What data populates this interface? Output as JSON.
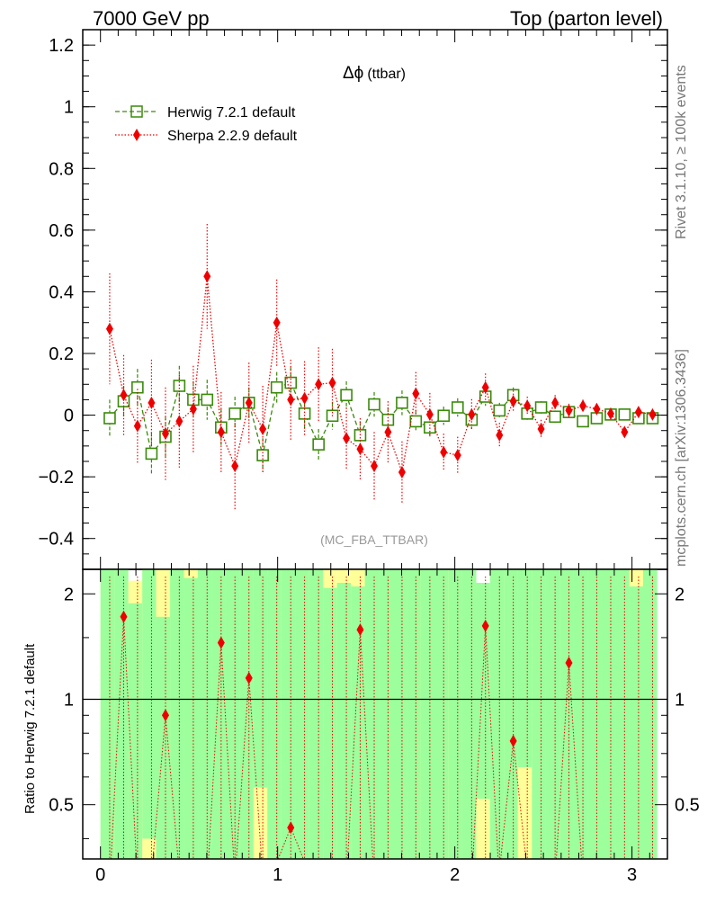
{
  "header": {
    "left": "7000 GeV pp",
    "right": "Top (parton level)"
  },
  "side_labels": {
    "rivet": "Rivet 3.1.10, ≥ 100k events",
    "mcplots": "mcplots.cern.ch [arXiv:1306.3436]"
  },
  "chart_data": [
    {
      "type": "line",
      "title": "Δϕ (ttbar)",
      "title_symbol": "Δϕ",
      "title_suffix": "(ttbar)",
      "watermark": "(MC_FBA_TTBAR)",
      "xlim": [
        -0.1,
        3.2
      ],
      "ylim": [
        -0.5,
        1.25
      ],
      "yticks": [
        -0.4,
        -0.2,
        0,
        0.2,
        0.4,
        0.6,
        0.8,
        1,
        1.2
      ],
      "ytick_labels": [
        "−0.4",
        "−0.2",
        "0",
        "0.2",
        "0.4",
        "0.6",
        "0.8",
        "1",
        "1.2"
      ],
      "grid": false,
      "legend_position": "top-left",
      "series": [
        {
          "name": "Herwig 7.2.1 default",
          "color": "#3a8a0a",
          "marker": "open-square",
          "line": "dashed",
          "x": [
            0.052,
            0.131,
            0.209,
            0.288,
            0.367,
            0.445,
            0.524,
            0.602,
            0.681,
            0.759,
            0.838,
            0.916,
            0.995,
            1.074,
            1.152,
            1.231,
            1.309,
            1.388,
            1.466,
            1.545,
            1.623,
            1.702,
            1.78,
            1.859,
            1.937,
            2.016,
            2.095,
            2.173,
            2.252,
            2.33,
            2.409,
            2.487,
            2.566,
            2.644,
            2.723,
            2.801,
            2.88,
            2.958,
            3.037,
            3.116
          ],
          "y": [
            -0.01,
            0.045,
            0.09,
            -0.125,
            -0.07,
            0.095,
            0.05,
            0.05,
            -0.04,
            0.005,
            0.04,
            -0.13,
            0.09,
            0.105,
            0.005,
            -0.095,
            -0.002,
            0.065,
            -0.065,
            0.035,
            -0.015,
            0.04,
            -0.02,
            -0.04,
            -0.002,
            0.025,
            -0.015,
            0.06,
            0.015,
            0.065,
            0.005,
            0.025,
            -0.005,
            0.01,
            -0.02,
            -0.01,
            0.002,
            0.002,
            -0.01,
            -0.01
          ],
          "err": [
            0.06,
            0.05,
            0.06,
            0.07,
            0.065,
            0.065,
            0.06,
            0.065,
            0.06,
            0.055,
            0.05,
            0.055,
            0.05,
            0.05,
            0.05,
            0.05,
            0.045,
            0.045,
            0.045,
            0.04,
            0.04,
            0.04,
            0.035,
            0.035,
            0.03,
            0.03,
            0.03,
            0.03,
            0.025,
            0.025,
            0.02,
            0.02,
            0.02,
            0.018,
            0.016,
            0.015,
            0.014,
            0.013,
            0.012,
            0.012
          ]
        },
        {
          "name": "Sherpa 2.2.9 default",
          "color": "#ee0000",
          "marker": "filled-diamond",
          "line": "dotted",
          "x": [
            0.052,
            0.131,
            0.209,
            0.288,
            0.367,
            0.445,
            0.524,
            0.602,
            0.681,
            0.759,
            0.838,
            0.916,
            0.995,
            1.074,
            1.152,
            1.231,
            1.309,
            1.388,
            1.466,
            1.545,
            1.623,
            1.702,
            1.78,
            1.859,
            1.937,
            2.016,
            2.095,
            2.173,
            2.252,
            2.33,
            2.409,
            2.487,
            2.566,
            2.644,
            2.723,
            2.801,
            2.88,
            2.958,
            3.037,
            3.116
          ],
          "y": [
            0.28,
            0.065,
            -0.035,
            0.04,
            -0.06,
            -0.02,
            0.02,
            0.45,
            -0.055,
            -0.165,
            0.04,
            -0.045,
            0.3,
            0.05,
            0.055,
            0.1,
            0.105,
            -0.075,
            -0.11,
            -0.165,
            -0.055,
            -0.185,
            0.07,
            0.002,
            -0.12,
            -0.13,
            0.002,
            0.09,
            -0.065,
            0.045,
            0.03,
            -0.045,
            0.04,
            0.015,
            0.03,
            0.02,
            0.005,
            -0.055,
            0.01,
            0.002
          ],
          "err": [
            0.18,
            0.13,
            0.12,
            0.14,
            0.15,
            0.15,
            0.14,
            0.17,
            0.13,
            0.14,
            0.13,
            0.14,
            0.14,
            0.13,
            0.12,
            0.12,
            0.11,
            0.1,
            0.1,
            0.11,
            0.1,
            0.1,
            0.07,
            0.07,
            0.06,
            0.06,
            0.05,
            0.045,
            0.04,
            0.035,
            0.03,
            0.03,
            0.025,
            0.022,
            0.02,
            0.018,
            0.016,
            0.015,
            0.013,
            0.012
          ]
        }
      ]
    },
    {
      "type": "line",
      "ylabel": "Ratio to Herwig 7.2.1 default",
      "xlim": [
        -0.1,
        3.2
      ],
      "ylim": [
        0.35,
        2.35
      ],
      "yticks": [
        0.5,
        1,
        2
      ],
      "ytick_labels": [
        "0.5",
        "1",
        "2"
      ],
      "xticks": [
        0,
        1,
        2,
        3
      ],
      "xtick_labels": [
        "0",
        "1",
        "2",
        "3"
      ],
      "reference_line": 1,
      "bands": {
        "x_edges": [
          0.0,
          0.0785,
          0.157,
          0.236,
          0.314,
          0.393,
          0.471,
          0.55,
          0.628,
          0.707,
          0.785,
          0.864,
          0.942,
          1.021,
          1.1,
          1.178,
          1.257,
          1.335,
          1.414,
          1.492,
          1.571,
          1.649,
          1.728,
          1.806,
          1.885,
          1.963,
          2.042,
          2.121,
          2.199,
          2.278,
          2.356,
          2.435,
          2.513,
          2.592,
          2.67,
          2.749,
          2.827,
          2.906,
          2.985,
          3.063,
          3.142
        ],
        "inner_color": "#9cff9c",
        "outer_color": "#ffff99",
        "inner_low": [
          0.35,
          0.35,
          0.35,
          0.4,
          0.35,
          0.35,
          0.35,
          0.35,
          0.35,
          0.35,
          0.35,
          0.56,
          0.35,
          0.35,
          0.35,
          0.35,
          0.35,
          0.35,
          0.35,
          0.35,
          0.35,
          0.35,
          0.35,
          0.35,
          0.35,
          0.35,
          0.35,
          0.52,
          0.35,
          0.35,
          0.64,
          0.35,
          0.35,
          0.35,
          0.35,
          0.35,
          0.35,
          0.35,
          0.35,
          0.35
        ],
        "inner_high": [
          2.35,
          2.35,
          1.88,
          2.35,
          1.72,
          2.35,
          2.22,
          2.35,
          2.35,
          2.35,
          2.35,
          2.35,
          2.35,
          2.35,
          2.35,
          2.35,
          2.08,
          2.15,
          2.1,
          2.35,
          2.35,
          2.35,
          2.35,
          2.35,
          2.35,
          2.35,
          2.35,
          2.35,
          2.35,
          2.35,
          2.35,
          2.35,
          2.35,
          2.35,
          2.35,
          2.35,
          2.35,
          2.35,
          2.1,
          2.35
        ],
        "outer_low": [
          0.35,
          0.35,
          0.35,
          0.35,
          0.35,
          0.35,
          0.35,
          0.35,
          0.35,
          0.35,
          0.35,
          0.35,
          0.35,
          0.35,
          0.35,
          0.35,
          0.35,
          0.35,
          0.35,
          0.35,
          0.35,
          0.35,
          0.35,
          0.35,
          0.35,
          0.35,
          0.35,
          0.35,
          0.35,
          0.35,
          0.35,
          0.35,
          0.35,
          0.35,
          0.35,
          0.35,
          0.35,
          0.35,
          0.35,
          0.35
        ],
        "outer_high": [
          2.35,
          2.35,
          2.35,
          2.35,
          2.35,
          2.35,
          2.35,
          2.35,
          2.35,
          2.35,
          2.35,
          2.35,
          2.35,
          2.35,
          2.35,
          2.35,
          2.35,
          2.35,
          2.35,
          2.35,
          2.35,
          2.35,
          2.35,
          2.35,
          2.35,
          2.35,
          2.35,
          2.35,
          2.35,
          2.35,
          2.35,
          2.35,
          2.35,
          2.35,
          2.35,
          2.35,
          2.35,
          2.35,
          2.35,
          2.35
        ],
        "outer_top_gap": [
          2.35,
          2.35,
          2.18,
          2.35,
          2.35,
          2.35,
          2.35,
          2.35,
          2.35,
          2.35,
          2.35,
          2.35,
          2.35,
          2.35,
          2.35,
          2.35,
          2.35,
          2.35,
          2.35,
          2.35,
          2.35,
          2.35,
          2.35,
          2.35,
          2.35,
          2.35,
          2.35,
          2.15,
          2.35,
          2.35,
          2.35,
          2.35,
          2.35,
          2.35,
          2.35,
          2.35,
          2.35,
          2.35,
          2.35,
          2.35
        ]
      },
      "series": [
        {
          "name": "Sherpa 2.2.9 default",
          "color": "#ee0000",
          "marker": "filled-diamond",
          "line": "dotted",
          "x": [
            0.131,
            0.367,
            0.681,
            0.838,
            1.074,
            1.466,
            2.173,
            2.33,
            2.644
          ],
          "y": [
            1.72,
            0.9,
            1.45,
            1.15,
            0.43,
            1.58,
            1.62,
            0.76,
            1.27
          ]
        }
      ]
    }
  ]
}
